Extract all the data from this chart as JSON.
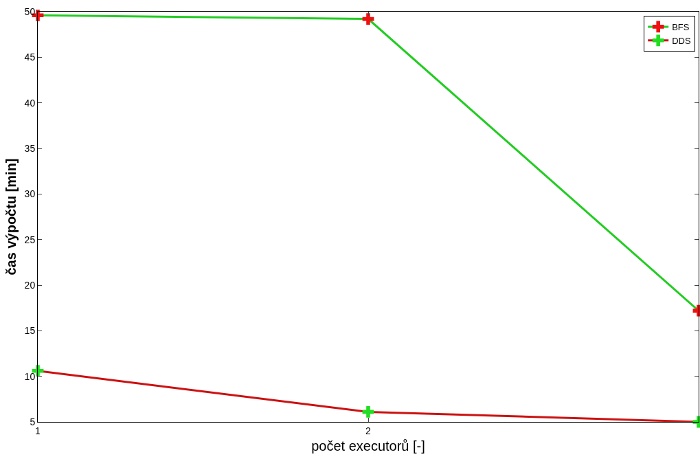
{
  "chart_data": {
    "type": "line",
    "xlabel": "počet executorů [-]",
    "ylabel": "čas výpočtu [min]",
    "x": [
      1,
      2,
      3
    ],
    "xlim": [
      1,
      3
    ],
    "xticks": [
      1,
      2
    ],
    "ylim": [
      5,
      50
    ],
    "yticks": [
      5,
      10,
      15,
      20,
      25,
      30,
      35,
      40,
      45,
      50
    ],
    "grid": false,
    "legend": "top right",
    "marker": "cross",
    "line_style": "solid",
    "series": [
      {
        "name": "BFS",
        "color": "#22cc22",
        "colors": [
          "#ee1111",
          "#ee1111",
          "#ee1111"
        ],
        "values": [
          49.6,
          49.2,
          17.2
        ]
      },
      {
        "name": "DDS",
        "color": "#cc1111",
        "colors": [
          "#22dd22",
          "#22dd22",
          "#22dd22"
        ],
        "values": [
          10.6,
          6.1,
          5.0
        ]
      }
    ]
  }
}
